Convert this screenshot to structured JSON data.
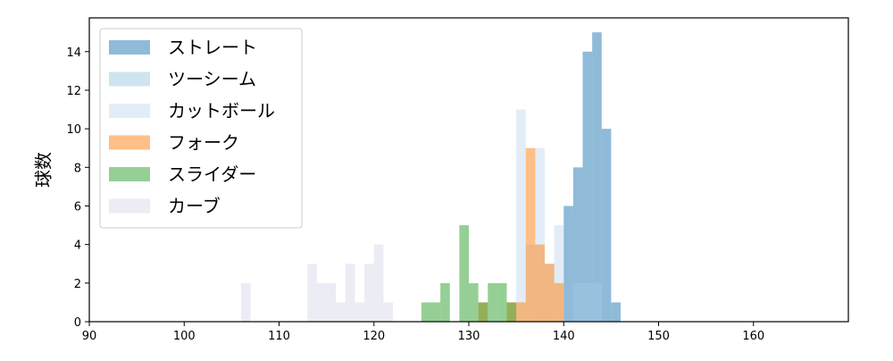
{
  "chart_data": {
    "type": "histogram",
    "y_label": "球数",
    "xlim": [
      90,
      170
    ],
    "ylim": [
      0,
      15.75
    ],
    "xticks": [
      90,
      100,
      110,
      120,
      130,
      140,
      150,
      160
    ],
    "yticks": [
      0,
      2,
      4,
      6,
      8,
      10,
      12,
      14
    ],
    "alpha": 0.5,
    "legend": "upper left",
    "series": [
      {
        "name": "ストレート",
        "color": "#1f77b4",
        "bins": [
          140,
          141,
          142,
          143,
          144,
          145,
          146
        ],
        "values": [
          6,
          8,
          14,
          15,
          10,
          1
        ]
      },
      {
        "name": "ツーシーム",
        "color": "#9ecae1",
        "bins": [
          141,
          142,
          143,
          144
        ],
        "values": [
          2,
          2,
          2
        ]
      },
      {
        "name": "カットボール",
        "color": "#c6dbef",
        "bins": [
          135,
          136,
          137,
          138,
          139,
          140
        ],
        "values": [
          11,
          4,
          9,
          3,
          5
        ]
      },
      {
        "name": "フォーク",
        "color": "#ff7f0e",
        "bins": [
          131,
          132,
          133,
          134,
          135,
          136,
          137,
          138,
          139,
          140
        ],
        "values": [
          1,
          0,
          0,
          1,
          1,
          9,
          4,
          3,
          2
        ]
      },
      {
        "name": "スライダー",
        "color": "#2ca02c",
        "bins": [
          125,
          126,
          127,
          128,
          129,
          130,
          131,
          132,
          133,
          134,
          135
        ],
        "values": [
          1,
          1,
          2,
          0,
          5,
          2,
          1,
          2,
          2,
          1
        ]
      },
      {
        "name": "カーブ",
        "color": "#dadaeb",
        "bins": [
          106,
          107,
          108,
          109,
          110,
          111,
          112,
          113,
          114,
          115,
          116,
          117,
          118,
          119,
          120,
          121,
          122
        ],
        "values": [
          2,
          0,
          0,
          0,
          0,
          0,
          0,
          3,
          2,
          2,
          1,
          3,
          1,
          3,
          4,
          1
        ]
      }
    ]
  }
}
